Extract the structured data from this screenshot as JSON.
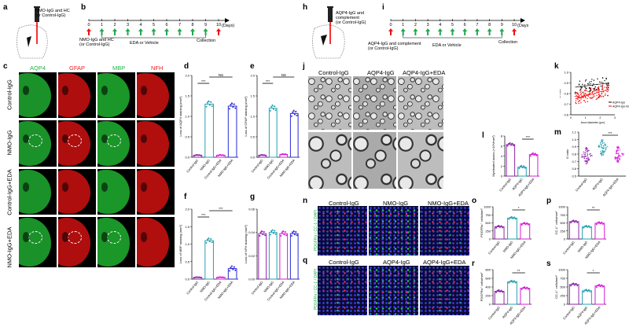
{
  "panel_labels": {
    "a": "a",
    "b": "b",
    "c": "c",
    "d": "d",
    "e": "e",
    "f": "f",
    "g": "g",
    "h": "h",
    "i": "i",
    "j": "j",
    "k": "k",
    "l": "l",
    "m": "m",
    "n": "n",
    "o": "o",
    "p": "p",
    "q": "q",
    "r": "r",
    "s": "s"
  },
  "panel_a": {
    "injection": "NMO-IgG and HC\n(or Control-IgG)"
  },
  "panel_b": {
    "days": [
      "0",
      "1",
      "2",
      "3",
      "4",
      "5",
      "6",
      "7",
      "8",
      "9",
      "10"
    ],
    "unit": "(Days)",
    "start_label": "NMO-IgG and HC\n(or Control-IgG)",
    "treatment_label": "EDA or Vehicle",
    "end_label": "Collection"
  },
  "panel_h": {
    "injection": "AQP4-IgG and\ncomplement\n(or Control-IgG)"
  },
  "panel_i": {
    "days": [
      "0",
      "1",
      "2",
      "3",
      "4",
      "5",
      "6",
      "7",
      "8",
      "9",
      "10"
    ],
    "unit": "(Days)",
    "start_label": "AQP4-IgG and complement\n(or Control-IgG)",
    "treatment_label": "EDA or Vehicle",
    "end_label": "Collection"
  },
  "panel_c": {
    "columns": [
      {
        "label": "AQP4",
        "color": "#22b14c"
      },
      {
        "label": "GFAP",
        "color": "#ed1c24"
      },
      {
        "label": "MBP",
        "color": "#22b14c"
      },
      {
        "label": "NFH",
        "color": "#ed1c24"
      }
    ],
    "rows": [
      "Control-IgG",
      "NMO-IgG",
      "Control-IgG+EDA",
      "NMO-IgG+EDA"
    ]
  },
  "panel_j": {
    "columns": [
      "Control-IgG",
      "AQP4-IgG",
      "AQP4-IgG+EDA"
    ]
  },
  "panel_n": {
    "columns": [
      "Control-IgG",
      "NMO-IgG",
      "NMO-IgG+EDA"
    ],
    "stain": "PDGFRα / CC-1 / DAPI"
  },
  "panel_q": {
    "columns": [
      "Control-IgG",
      "AQP4-IgG",
      "AQP4-IgG+EDA"
    ],
    "stain": "PDGFRα / CC-1 / DAPI"
  },
  "colors": {
    "control": "#8e24aa",
    "disease": "#26a0b4",
    "control_eda": "#d81bd8",
    "disease_eda": "#2a2ad6",
    "treated": "#d81bd8"
  },
  "chart_data": [
    {
      "id": "d",
      "type": "bar",
      "ylabel": "Loss of AQP4 staining (mm²)",
      "categories": [
        "Control-IgG",
        "NMO-IgG",
        "Control-IgG+EDA",
        "NMO-IgG+EDA"
      ],
      "values": [
        0.05,
        1.3,
        0.05,
        1.25
      ],
      "ylim": [
        0,
        2
      ],
      "ticks": [
        "0.0",
        "0.5",
        "1.0",
        "1.5",
        "2.0"
      ],
      "sig": [
        {
          "from": 0,
          "to": 1,
          "label": "***"
        },
        {
          "from": 1,
          "to": 3,
          "label": "NS"
        }
      ]
    },
    {
      "id": "e",
      "type": "bar",
      "ylabel": "Loss of GFAP staining (mm²)",
      "categories": [
        "Control-IgG",
        "NMO-IgG",
        "Control-IgG+EDA",
        "NMO-IgG+EDA"
      ],
      "values": [
        0.05,
        1.2,
        0.07,
        1.07
      ],
      "ylim": [
        0,
        2
      ],
      "ticks": [
        "0.0",
        "0.5",
        "1.0",
        "1.5",
        "2.0"
      ],
      "sig": [
        {
          "from": 0,
          "to": 1,
          "label": "***"
        },
        {
          "from": 1,
          "to": 3,
          "label": "NS"
        }
      ]
    },
    {
      "id": "f",
      "type": "bar",
      "ylabel": "Loss of MBP staining (mm²)",
      "categories": [
        "Control-IgG",
        "NMO-IgG",
        "Control-IgG+EDA",
        "NMO-IgG+EDA"
      ],
      "values": [
        0.05,
        1.1,
        0.05,
        0.3
      ],
      "ylim": [
        0,
        2
      ],
      "ticks": [
        "0.0",
        "0.5",
        "1.0",
        "1.5",
        "2.0"
      ],
      "sig": [
        {
          "from": 0,
          "to": 1,
          "label": "***"
        },
        {
          "from": 1,
          "to": 3,
          "label": "***"
        }
      ]
    },
    {
      "id": "g",
      "type": "bar",
      "ylabel": "Loss of NFH staining (mm²)",
      "categories": [
        "Control-IgG",
        "NMO-IgG",
        "Control-IgG+EDA",
        "NMO-IgG+EDA"
      ],
      "values": [
        0.039,
        0.04,
        0.039,
        0.039
      ],
      "ylim": [
        0,
        0.06
      ],
      "ticks": [
        "0.00",
        "0.02",
        "0.04",
        "0.06"
      ],
      "sig": []
    },
    {
      "id": "l",
      "type": "bar",
      "ylabel": "Myelinated axons (×10⁴/mm²)",
      "categories": [
        "Control-IgG",
        "AQP4-IgG",
        "AQP4-IgG+EDA"
      ],
      "values": [
        6.3,
        1.8,
        4.3
      ],
      "ylim": [
        0,
        8
      ],
      "ticks": [
        "0",
        "2",
        "4",
        "6",
        "8"
      ],
      "sig": [
        {
          "from": 1,
          "to": 2,
          "label": "***"
        }
      ]
    },
    {
      "id": "m",
      "type": "scatter",
      "ylabel": "G ratio",
      "categories": [
        "Control-IgG",
        "AQP4-IgG",
        "AQP4-IgG+EDA"
      ],
      "values": [
        0.78,
        0.89,
        0.8
      ],
      "ylim": [
        0.5,
        1.1
      ],
      "ticks": [
        "0.5",
        "0.6",
        "0.7",
        "0.8",
        "0.9",
        "1.0",
        "1.1"
      ],
      "sig": [
        {
          "from": 1,
          "to": 2,
          "label": "***"
        }
      ]
    },
    {
      "id": "k",
      "type": "scatter",
      "ylabel": "G ratio",
      "xlabel": "Axon diameter (μm)",
      "series": [
        {
          "name": "AQP4-IgG",
          "color": "#000000",
          "trend": [
            0.86,
            0.9
          ]
        },
        {
          "name": "AQP4-IgG+EDA",
          "color": "#ff0000",
          "trend": [
            0.75,
            0.84
          ]
        }
      ],
      "ylim": [
        0.6,
        1.0
      ],
      "xlim": [
        0,
        3
      ],
      "ticks": [
        "0.6",
        "0.7",
        "0.8",
        "0.9",
        "1.0"
      ],
      "xticks": [
        "0",
        "1",
        "2",
        "3"
      ],
      "legend": "right"
    },
    {
      "id": "o",
      "type": "bar",
      "ylabel": "PDGFRα⁺ cells/mm²",
      "categories": [
        "Control-IgG",
        "NMO-IgG",
        "NMO-IgG+EDA"
      ],
      "values": [
        380,
        650,
        470
      ],
      "ylim": [
        0,
        1000
      ],
      "ticks": [
        "0",
        "250",
        "500",
        "750",
        "1000"
      ],
      "sig": [
        {
          "from": 1,
          "to": 2,
          "label": "*"
        }
      ]
    },
    {
      "id": "p",
      "type": "bar",
      "ylabel": "CC-1⁺ cells/mm²",
      "categories": [
        "Control-IgG",
        "NMO-IgG",
        "NMO-IgG+EDA"
      ],
      "values": [
        540,
        380,
        490
      ],
      "ylim": [
        0,
        1000
      ],
      "ticks": [
        "0",
        "250",
        "500",
        "750",
        "1000"
      ],
      "sig": [
        {
          "from": 1,
          "to": 2,
          "label": "**"
        }
      ]
    },
    {
      "id": "r",
      "type": "bar",
      "ylabel": "PDGFRα⁺ cells/mm²",
      "categories": [
        "Control-IgG",
        "AQP4-IgG",
        "AQP4-IgG+EDA"
      ],
      "values": [
        300,
        520,
        370
      ],
      "ylim": [
        0,
        800
      ],
      "ticks": [
        "0",
        "200",
        "400",
        "600",
        "800"
      ],
      "sig": [
        {
          "from": 1,
          "to": 2,
          "label": "**"
        }
      ]
    },
    {
      "id": "s",
      "type": "bar",
      "ylabel": "CC-1⁺ cells/mm²",
      "categories": [
        "Control-IgG",
        "AQP4-IgG",
        "AQP4-IgG+EDA"
      ],
      "values": [
        570,
        390,
        530
      ],
      "ylim": [
        0,
        1000
      ],
      "ticks": [
        "0",
        "250",
        "500",
        "750",
        "1000"
      ],
      "sig": [
        {
          "from": 1,
          "to": 2,
          "label": "*"
        }
      ]
    }
  ]
}
